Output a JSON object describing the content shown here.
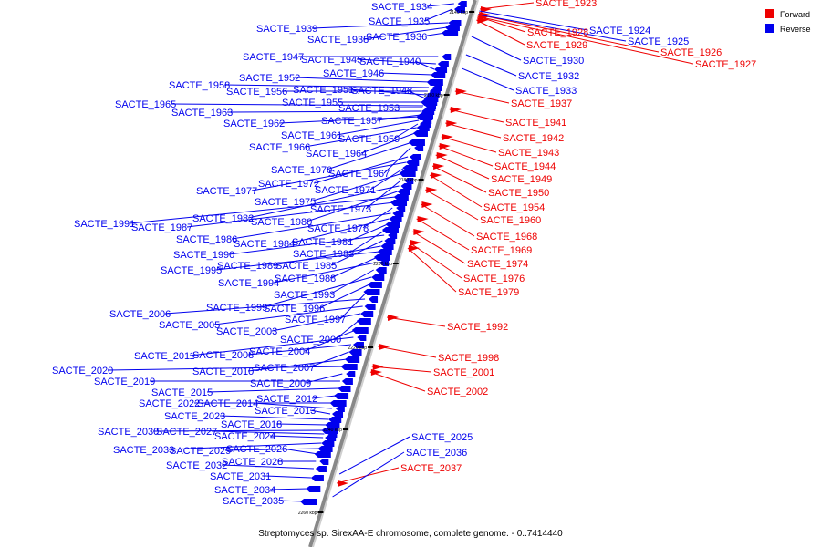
{
  "caption": "Streptomyces sp. SirexAA-E chromosome, complete genome. - 0..7414440",
  "legend": [
    {
      "label": "Forward",
      "color": "#ee0000"
    },
    {
      "label": "Reverse",
      "color": "#0000ee"
    }
  ],
  "colors": {
    "forward": "#ee0000",
    "reverse": "#0000ee",
    "axis": "#888888"
  },
  "scale_ticks": [
    "2140 kbp",
    "2160 kbp",
    "2180 kbp",
    "2200 kbp",
    "2220 kbp",
    "2240 kbp",
    "2260 kbp"
  ],
  "forward_labels": [
    "SACTE_1923",
    "SACTE_1928",
    "SACTE_1929",
    "SACTE_1926",
    "SACTE_1927",
    "SACTE_1937",
    "SACTE_1941",
    "SACTE_1942",
    "SACTE_1943",
    "SACTE_1944",
    "SACTE_1949",
    "SACTE_1950",
    "SACTE_1954",
    "SACTE_1960",
    "SACTE_1968",
    "SACTE_1969",
    "SACTE_1974",
    "SACTE_1976",
    "SACTE_1979",
    "SACTE_1992",
    "SACTE_1998",
    "SACTE_2001",
    "SACTE_2002",
    "SACTE_2037"
  ],
  "reverse_right_labels": [
    "SACTE_1924",
    "SACTE_1925",
    "SACTE_1930",
    "SACTE_1932",
    "SACTE_1933",
    "SACTE_2025",
    "SACTE_2036"
  ],
  "reverse_left_labels": [
    "SACTE_1934",
    "SACTE_1935",
    "SACTE_1939",
    "SACTE_1938",
    "SACTE_1936",
    "SACTE_1947",
    "SACTE_1945",
    "SACTE_1940",
    "SACTE_1946",
    "SACTE_1952",
    "SACTE_1958",
    "SACTE_1956",
    "SACTE_1951",
    "SACTE_1948",
    "SACTE_1955",
    "SACTE_1953",
    "SACTE_1965",
    "SACTE_1963",
    "SACTE_1957",
    "SACTE_1962",
    "SACTE_1961",
    "SACTE_1959",
    "SACTE_1966",
    "SACTE_1964",
    "SACTE_1970",
    "SACTE_1967",
    "SACTE_1972",
    "SACTE_1977",
    "SACTE_1971",
    "SACTE_1975",
    "SACTE_1973",
    "SACTE_1982",
    "SACTE_1980",
    "SACTE_1991",
    "SACTE_1987",
    "SACTE_1978",
    "SACTE_1986",
    "SACTE_1984",
    "SACTE_1981",
    "SACTE_1983",
    "SACTE_1990",
    "SACTE_1985",
    "SACTE_1989",
    "SACTE_1995",
    "SACTE_1988",
    "SACTE_1994",
    "SACTE_1993",
    "SACTE_1999",
    "SACTE_1996",
    "SACTE_1997",
    "SACTE_2006",
    "SACTE_2005",
    "SACTE_2003",
    "SACTE_2000",
    "SACTE_2004",
    "SACTE_2011",
    "SACTE_2008",
    "SACTE_2007",
    "SACTE_2010",
    "SACTE_2020",
    "SACTE_2009",
    "SACTE_2019",
    "SACTE_2015",
    "SACTE_2012",
    "SACTE_2022",
    "SACTE_2014",
    "SACTE_2013",
    "SACTE_2023",
    "SACTE_2018",
    "SACTE_2030",
    "SACTE_2027",
    "SACTE_2024",
    "SACTE_2033",
    "SACTE_2029",
    "SACTE_2026",
    "SACTE_2028",
    "SACTE_2032",
    "SACTE_2031",
    "SACTE_2034",
    "SACTE_2035"
  ]
}
